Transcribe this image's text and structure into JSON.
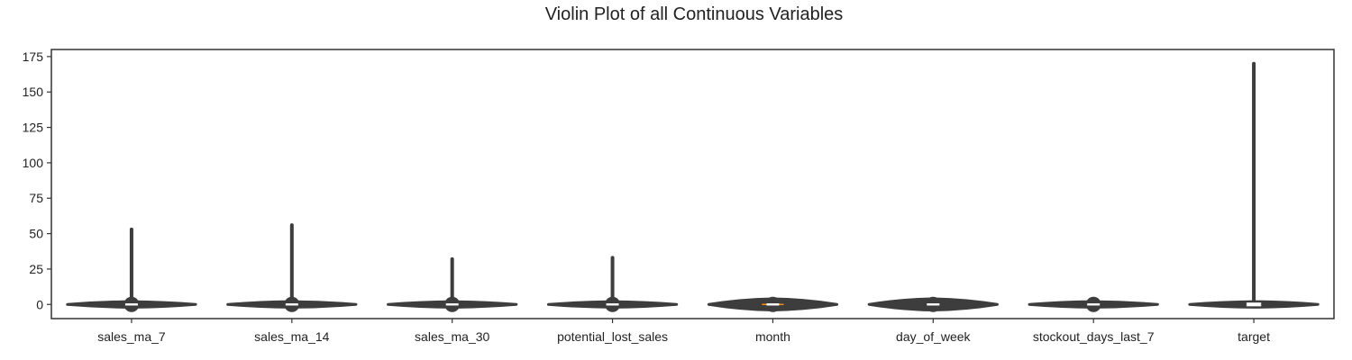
{
  "chart_data": {
    "type": "violin",
    "title": "Violin Plot of all Continuous Variables",
    "xlabel": "",
    "ylabel": "",
    "ylim": [
      -10,
      180
    ],
    "yticks": [
      0,
      25,
      50,
      75,
      100,
      125,
      150,
      175
    ],
    "grid": false,
    "colors": {
      "violin": "#3d3d3d",
      "box": "#ffffff",
      "median": "#ff8c00"
    },
    "categories": [
      "sales_ma_7",
      "sales_ma_14",
      "sales_ma_30",
      "potential_lost_sales",
      "month",
      "day_of_week",
      "stockout_days_last_7",
      "target"
    ],
    "series": [
      {
        "category": "sales_ma_7",
        "min": -1,
        "max": 53,
        "median": 0,
        "body_min": -1,
        "body_max": 1,
        "halfwidth": 0.8
      },
      {
        "category": "sales_ma_14",
        "min": -1,
        "max": 56,
        "median": 0,
        "body_min": -1,
        "body_max": 1,
        "halfwidth": 0.8
      },
      {
        "category": "sales_ma_30",
        "min": -1,
        "max": 32,
        "median": 0,
        "body_min": -1,
        "body_max": 1,
        "halfwidth": 0.8
      },
      {
        "category": "potential_lost_sales",
        "min": -1,
        "max": 33,
        "median": 0,
        "body_min": -1,
        "body_max": 1,
        "halfwidth": 0.8
      },
      {
        "category": "month",
        "min": -2,
        "max": 2,
        "median": 0,
        "body_min": -2,
        "body_max": 2,
        "halfwidth": 0.8
      },
      {
        "category": "day_of_week",
        "min": -2,
        "max": 2,
        "median": 0,
        "body_min": -2,
        "body_max": 2,
        "halfwidth": 0.8
      },
      {
        "category": "stockout_days_last_7",
        "min": -1,
        "max": 2,
        "median": 0,
        "body_min": -1,
        "body_max": 1,
        "halfwidth": 0.8
      },
      {
        "category": "target",
        "min": -1,
        "max": 170,
        "median": 0,
        "body_min": -1,
        "body_max": 1,
        "halfwidth": 0.8
      }
    ]
  }
}
